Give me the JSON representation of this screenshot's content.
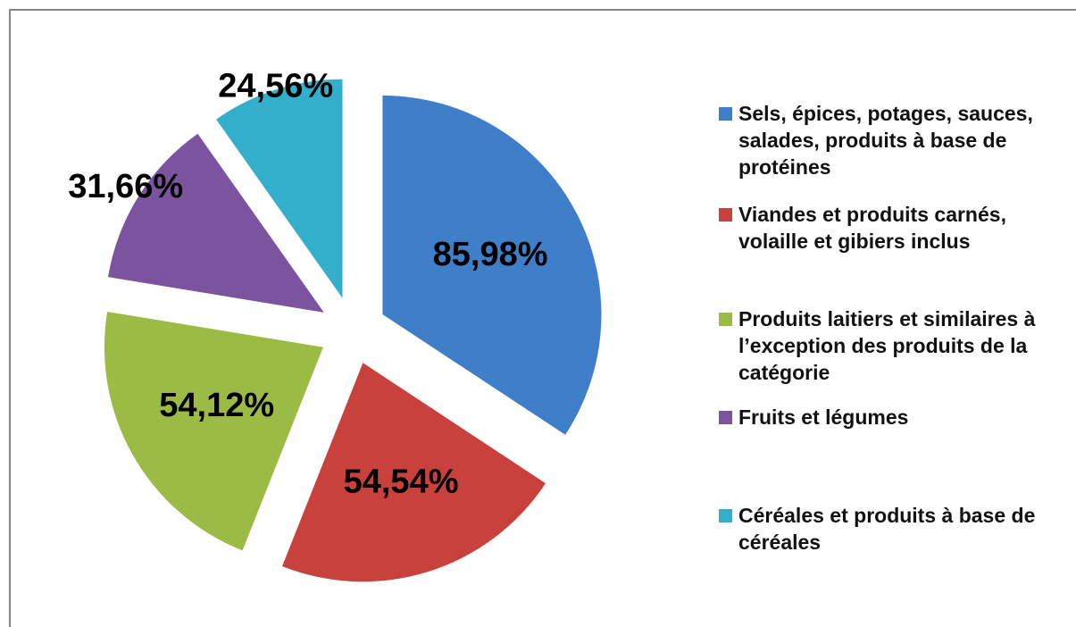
{
  "chart_data": {
    "type": "pie",
    "categories": [
      "Sels, épices, potages, sauces, salades, produits à base de protéines",
      "Viandes et produits carnés, volaille et gibiers inclus",
      "Produits laitiers et similaires à l’exception des produits de la catégorie",
      "Fruits et légumes",
      "Céréales et produits à base de céréales"
    ],
    "values": [
      85.98,
      54.54,
      54.12,
      31.66,
      24.56
    ],
    "value_labels": [
      "85,98%",
      "54,54%",
      "54,12%",
      "31,66%",
      "24,56%"
    ],
    "colors": [
      "#3f7ec9",
      "#c8413c",
      "#9bbb44",
      "#7b539f",
      "#33aecb"
    ],
    "legend": "right"
  }
}
